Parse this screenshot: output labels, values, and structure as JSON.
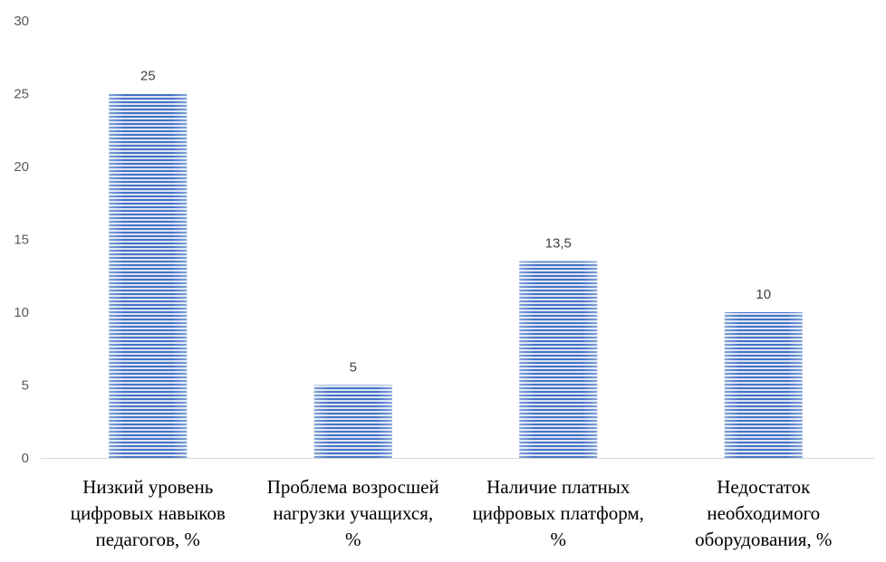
{
  "chart_data": {
    "type": "bar",
    "title": "",
    "xlabel": "",
    "ylabel": "",
    "categories": [
      [
        "Низкий уровень",
        "цифровых навыков",
        "педагогов, %"
      ],
      [
        "Проблема возросшей",
        "нагрузки учащихся,",
        "%"
      ],
      [
        "Наличие платных",
        "цифровых платформ,",
        "%"
      ],
      [
        "Недостаток",
        "необходимого",
        "оборудования, %"
      ]
    ],
    "values": [
      25,
      5,
      13.5,
      10
    ],
    "data_labels": [
      "25",
      "5",
      "13,5",
      "10"
    ],
    "ylim": [
      0,
      30
    ],
    "yticks": [
      0,
      5,
      10,
      15,
      20,
      25,
      30
    ],
    "grid": false,
    "legend": "none",
    "colors": {
      "bar": "#4472c4",
      "bar_light": "#dce5f5",
      "axis": "#d9d9d9"
    }
  }
}
